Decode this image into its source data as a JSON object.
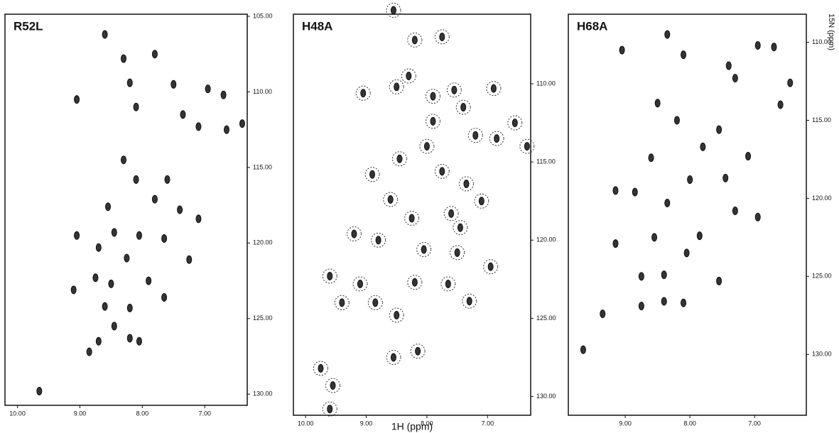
{
  "chart_data": [
    {
      "type": "scatter",
      "title": "R52L",
      "xlim": [
        10.2,
        6.32
      ],
      "ylim": [
        130.74,
        104.86
      ],
      "xticks": [
        {
          "value": 10,
          "label": "10.00"
        },
        {
          "value": 9,
          "label": "9.00"
        },
        {
          "value": 8,
          "label": "8.00"
        },
        {
          "value": 7,
          "label": "7.00"
        }
      ],
      "yticks": [
        {
          "value": 105,
          "label": "105.00"
        },
        {
          "value": 110,
          "label": "110.00"
        },
        {
          "value": 115,
          "label": "115.00"
        },
        {
          "value": 120,
          "label": "120.00"
        },
        {
          "value": 125,
          "label": "125.00"
        },
        {
          "value": 130,
          "label": "130.00"
        }
      ],
      "color": "#111111",
      "circled": false,
      "x": [
        8.6,
        8.3,
        7.8,
        8.2,
        7.5,
        6.95,
        6.7,
        9.05,
        8.1,
        7.35,
        7.1,
        6.65,
        6.4,
        8.3,
        8.1,
        7.6,
        7.8,
        8.55,
        7.4,
        7.1,
        8.45,
        8.05,
        7.65,
        9.05,
        8.7,
        8.25,
        7.25,
        7.9,
        8.5,
        9.1,
        8.75,
        8.2,
        8.6,
        7.65,
        8.45,
        8.2,
        8.7,
        8.05,
        8.85,
        9.65
      ],
      "values": [
        106.2,
        107.8,
        107.5,
        109.4,
        109.5,
        109.8,
        110.2,
        110.5,
        111,
        111.5,
        112.3,
        112.5,
        112.1,
        114.5,
        115.8,
        115.8,
        117.1,
        117.6,
        117.8,
        118.4,
        119.3,
        119.5,
        119.7,
        119.5,
        120.3,
        121,
        121.1,
        122.5,
        122.7,
        123.1,
        122.3,
        124.3,
        124.2,
        123.6,
        125.5,
        126.3,
        126.5,
        126.5,
        127.2,
        129.8
      ]
    },
    {
      "type": "scatter",
      "title": "H48A",
      "x_label": "1H (ppm)",
      "xlim": [
        10.2,
        6.29
      ],
      "ylim": [
        131.2,
        105.55
      ],
      "xticks": [
        {
          "value": 10,
          "label": "10.00"
        },
        {
          "value": 9,
          "label": "9.00"
        },
        {
          "value": 8,
          "label": "8.00"
        },
        {
          "value": 7,
          "label": "7.00"
        }
      ],
      "yticks": [
        {
          "value": 110,
          "label": "110.00"
        },
        {
          "value": 115,
          "label": "115.00"
        },
        {
          "value": 120,
          "label": "120.00"
        },
        {
          "value": 125,
          "label": "125.00"
        },
        {
          "value": 130,
          "label": "130.00"
        }
      ],
      "color": "#111111",
      "circled": true,
      "x": [
        8.55,
        8.2,
        7.75,
        8.3,
        8.5,
        9.05,
        7.9,
        7.55,
        6.9,
        7.4,
        7.9,
        7.2,
        6.85,
        6.55,
        6.35,
        8.0,
        8.45,
        8.9,
        7.75,
        7.35,
        8.6,
        8.25,
        7.6,
        7.1,
        7.45,
        9.2,
        8.8,
        8.05,
        7.5,
        6.95,
        9.6,
        9.1,
        8.2,
        7.65,
        9.4,
        8.85,
        7.3,
        8.5,
        8.55,
        8.15,
        9.75,
        9.55,
        9.6
      ],
      "values": [
        105.3,
        107.2,
        107,
        109.5,
        110.2,
        110.6,
        110.8,
        110.4,
        110.3,
        111.5,
        112.4,
        113.3,
        113.5,
        112.5,
        114,
        114,
        114.8,
        115.8,
        115.6,
        116.4,
        117.4,
        118.6,
        118.3,
        117.5,
        119.2,
        119.6,
        120,
        120.6,
        120.8,
        121.7,
        122.3,
        122.8,
        122.7,
        122.8,
        124,
        124,
        123.9,
        124.8,
        127.5,
        127.1,
        128.2,
        129.3,
        130.8
      ]
    },
    {
      "type": "scatter",
      "title": "H68A",
      "y_label": "15N (ppm)",
      "xlim": [
        9.88,
        6.2
      ],
      "ylim": [
        133.9,
        108.2
      ],
      "xticks": [
        {
          "value": 9,
          "label": "9.00"
        },
        {
          "value": 8,
          "label": "8.00"
        },
        {
          "value": 7,
          "label": "7.00"
        }
      ],
      "yticks": [
        {
          "value": 110,
          "label": "110.00"
        },
        {
          "value": 115,
          "label": "115.00"
        },
        {
          "value": 120,
          "label": "120.00"
        },
        {
          "value": 125,
          "label": "125.00"
        },
        {
          "value": 130,
          "label": "130.00"
        }
      ],
      "color": "#111111",
      "circled": false,
      "x": [
        8.35,
        8.0,
        8.35,
        9.05,
        8.1,
        7.4,
        6.95,
        6.7,
        6.45,
        7.3,
        8.5,
        8.2,
        7.55,
        7.8,
        7.1,
        6.6,
        8.6,
        8.0,
        7.45,
        8.85,
        9.15,
        8.35,
        7.3,
        6.95,
        7.85,
        8.55,
        9.15,
        8.05,
        8.4,
        7.55,
        8.75,
        8.4,
        8.1,
        8.75,
        9.65,
        9.35
      ],
      "values": [
        106.6,
        106.6,
        109.5,
        110.5,
        110.8,
        111.5,
        110.2,
        110.3,
        112.6,
        112.3,
        113.9,
        115,
        115.6,
        116.7,
        117.3,
        114,
        117.4,
        118.8,
        118.7,
        119.6,
        119.5,
        120.3,
        120.8,
        121.2,
        122.4,
        122.5,
        122.9,
        123.5,
        124.9,
        125.3,
        125,
        126.6,
        126.7,
        126.9,
        129.7,
        127.4
      ]
    }
  ]
}
